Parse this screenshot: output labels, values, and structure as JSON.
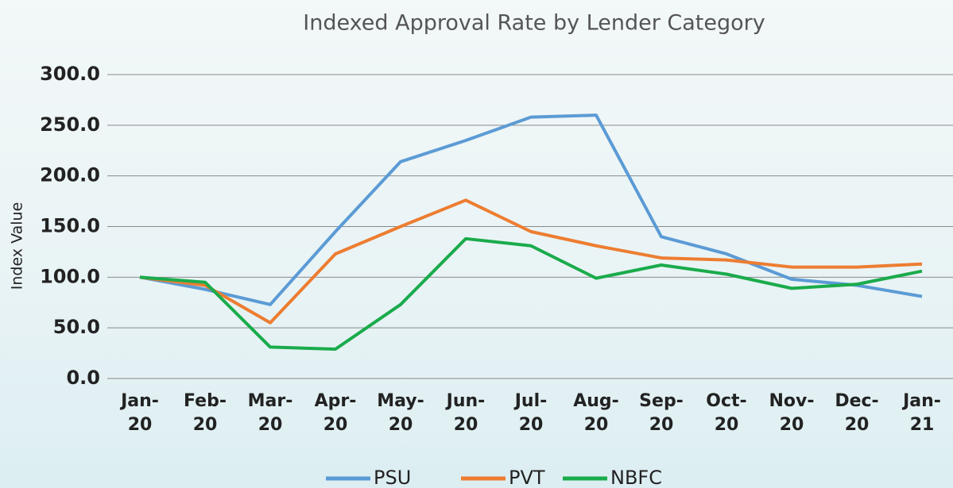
{
  "chart_data": {
    "type": "line",
    "title": "Indexed Approval Rate by Lender Category",
    "y_label": "Index Value",
    "categories": [
      "Jan-20",
      "Feb-20",
      "Mar-20",
      "Apr-20",
      "May-20",
      "Jun-20",
      "Jul-20",
      "Aug-20",
      "Sep-20",
      "Oct-20",
      "Nov-20",
      "Dec-20",
      "Jan-21"
    ],
    "series": [
      {
        "name": "PSU",
        "color": "#5b9bd5",
        "values": [
          100,
          88,
          73,
          145,
          214,
          235,
          258,
          260,
          140,
          123,
          98,
          92,
          81
        ]
      },
      {
        "name": "PVT",
        "color": "#ed7d31",
        "values": [
          100,
          92,
          55,
          123,
          150,
          176,
          145,
          131,
          119,
          117,
          110,
          110,
          113
        ]
      },
      {
        "name": "NBFC",
        "color": "#1aab4b",
        "values": [
          100,
          95,
          31,
          29,
          73,
          138,
          131,
          99,
          112,
          103,
          89,
          93,
          106
        ]
      }
    ],
    "ylim": [
      0,
      300
    ],
    "yticks": [
      {
        "value": 0,
        "label": "0.0"
      },
      {
        "value": 50,
        "label": "50.0"
      },
      {
        "value": 100,
        "label": "100.0"
      },
      {
        "value": 150,
        "label": "150.0"
      },
      {
        "value": 200,
        "label": "200.0"
      },
      {
        "value": 250,
        "label": "250.0"
      },
      {
        "value": 300,
        "label": "300.0"
      }
    ],
    "grid": true,
    "legend": "bottom"
  }
}
